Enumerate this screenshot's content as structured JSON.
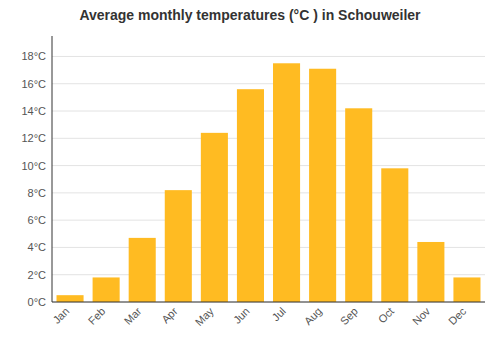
{
  "chart_data": {
    "type": "bar",
    "title": "Average monthly temperatures (°C ) in Schouweiler",
    "categories": [
      "Jan",
      "Feb",
      "Mar",
      "Apr",
      "May",
      "Jun",
      "Jul",
      "Aug",
      "Sep",
      "Oct",
      "Nov",
      "Dec"
    ],
    "values": [
      0.5,
      1.8,
      4.7,
      8.2,
      12.4,
      15.6,
      17.5,
      17.1,
      14.2,
      9.8,
      4.4,
      1.8
    ],
    "color": "#FFBB22",
    "ylim": [
      0,
      19.5
    ],
    "yticks": [
      {
        "value": 0,
        "label": "0°C"
      },
      {
        "value": 2,
        "label": "2°C"
      },
      {
        "value": 4,
        "label": "4°C"
      },
      {
        "value": 6,
        "label": "6°C"
      },
      {
        "value": 8,
        "label": "8°C"
      },
      {
        "value": 10,
        "label": "10°C"
      },
      {
        "value": 12,
        "label": "12°C"
      },
      {
        "value": 14,
        "label": "14°C"
      },
      {
        "value": 16,
        "label": "16°C"
      },
      {
        "value": 18,
        "label": "18°C"
      }
    ],
    "grid": true
  }
}
